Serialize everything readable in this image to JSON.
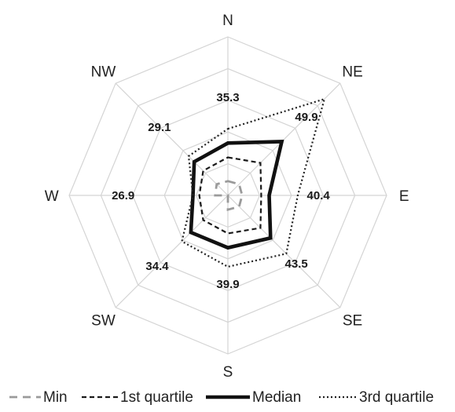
{
  "chart_data": {
    "type": "radar",
    "categories": [
      "N",
      "NE",
      "E",
      "SE",
      "S",
      "SW",
      "W",
      "NW"
    ],
    "rlim": [
      0,
      100
    ],
    "grid_levels": [
      20,
      40,
      60,
      80,
      100
    ],
    "grid": true,
    "legend_position": "bottom",
    "series": [
      {
        "name": "Min",
        "values": [
          9,
          10,
          9,
          10,
          9,
          0,
          8,
          10
        ],
        "style": "dashed-gray",
        "color": "#9a9a9a"
      },
      {
        "name": "1st quartile",
        "values": [
          24,
          29,
          21,
          29,
          24,
          22,
          18,
          22
        ],
        "style": "dashed",
        "color": "#1a1a1a"
      },
      {
        "name": "Median",
        "values": [
          33,
          48,
          26,
          38,
          33,
          33,
          22,
          30
        ],
        "style": "solid-thick",
        "color": "#111111"
      },
      {
        "name": "3rd quartile",
        "values": [
          42,
          86,
          44,
          52,
          45,
          41,
          22,
          35
        ],
        "style": "dotted",
        "color": "#222222"
      }
    ],
    "value_labels": [
      "35.3",
      "49.9",
      "40.4",
      "43.5",
      "39.9",
      "34.4",
      "26.9",
      "29.1"
    ]
  }
}
